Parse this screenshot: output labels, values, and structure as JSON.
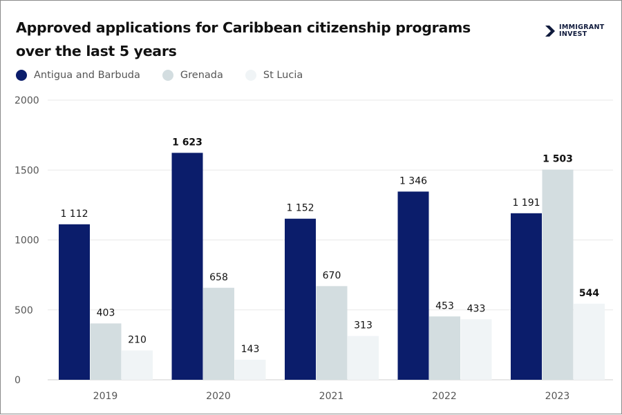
{
  "title_line1": "Approved applications for Caribbean citizenship programs",
  "title_line2": "over the last 5 years",
  "logo": {
    "line1": "IMMIGRANT",
    "line2": "INVEST",
    "color": "#0f1a3c"
  },
  "chart_data": {
    "type": "bar",
    "title": "Approved applications for Caribbean citizenship programs over the last 5 years",
    "categories": [
      "2019",
      "2020",
      "2021",
      "2022",
      "2023"
    ],
    "series": [
      {
        "name": "Antigua and Barbuda",
        "color": "#0b1d6b",
        "values": [
          1112,
          1623,
          1152,
          1346,
          1191
        ],
        "labels": [
          "1 112",
          "1 623",
          "1 152",
          "1 346",
          "1 191"
        ]
      },
      {
        "name": "Grenada",
        "color": "#d3dde0",
        "values": [
          403,
          658,
          670,
          453,
          1503
        ],
        "labels": [
          "403",
          "658",
          "670",
          "453",
          "1 503"
        ]
      },
      {
        "name": "St Lucia",
        "color": "#f0f4f6",
        "values": [
          210,
          143,
          313,
          433,
          544
        ],
        "labels": [
          "210",
          "143",
          "313",
          "433",
          "544"
        ]
      }
    ],
    "highlighted_max_per_series": true,
    "ylim": [
      0,
      2000
    ],
    "yticks": [
      "0",
      "500",
      "1000",
      "1500",
      "2000"
    ],
    "grid": true,
    "legend": "top-left",
    "xlabel": "",
    "ylabel": ""
  }
}
